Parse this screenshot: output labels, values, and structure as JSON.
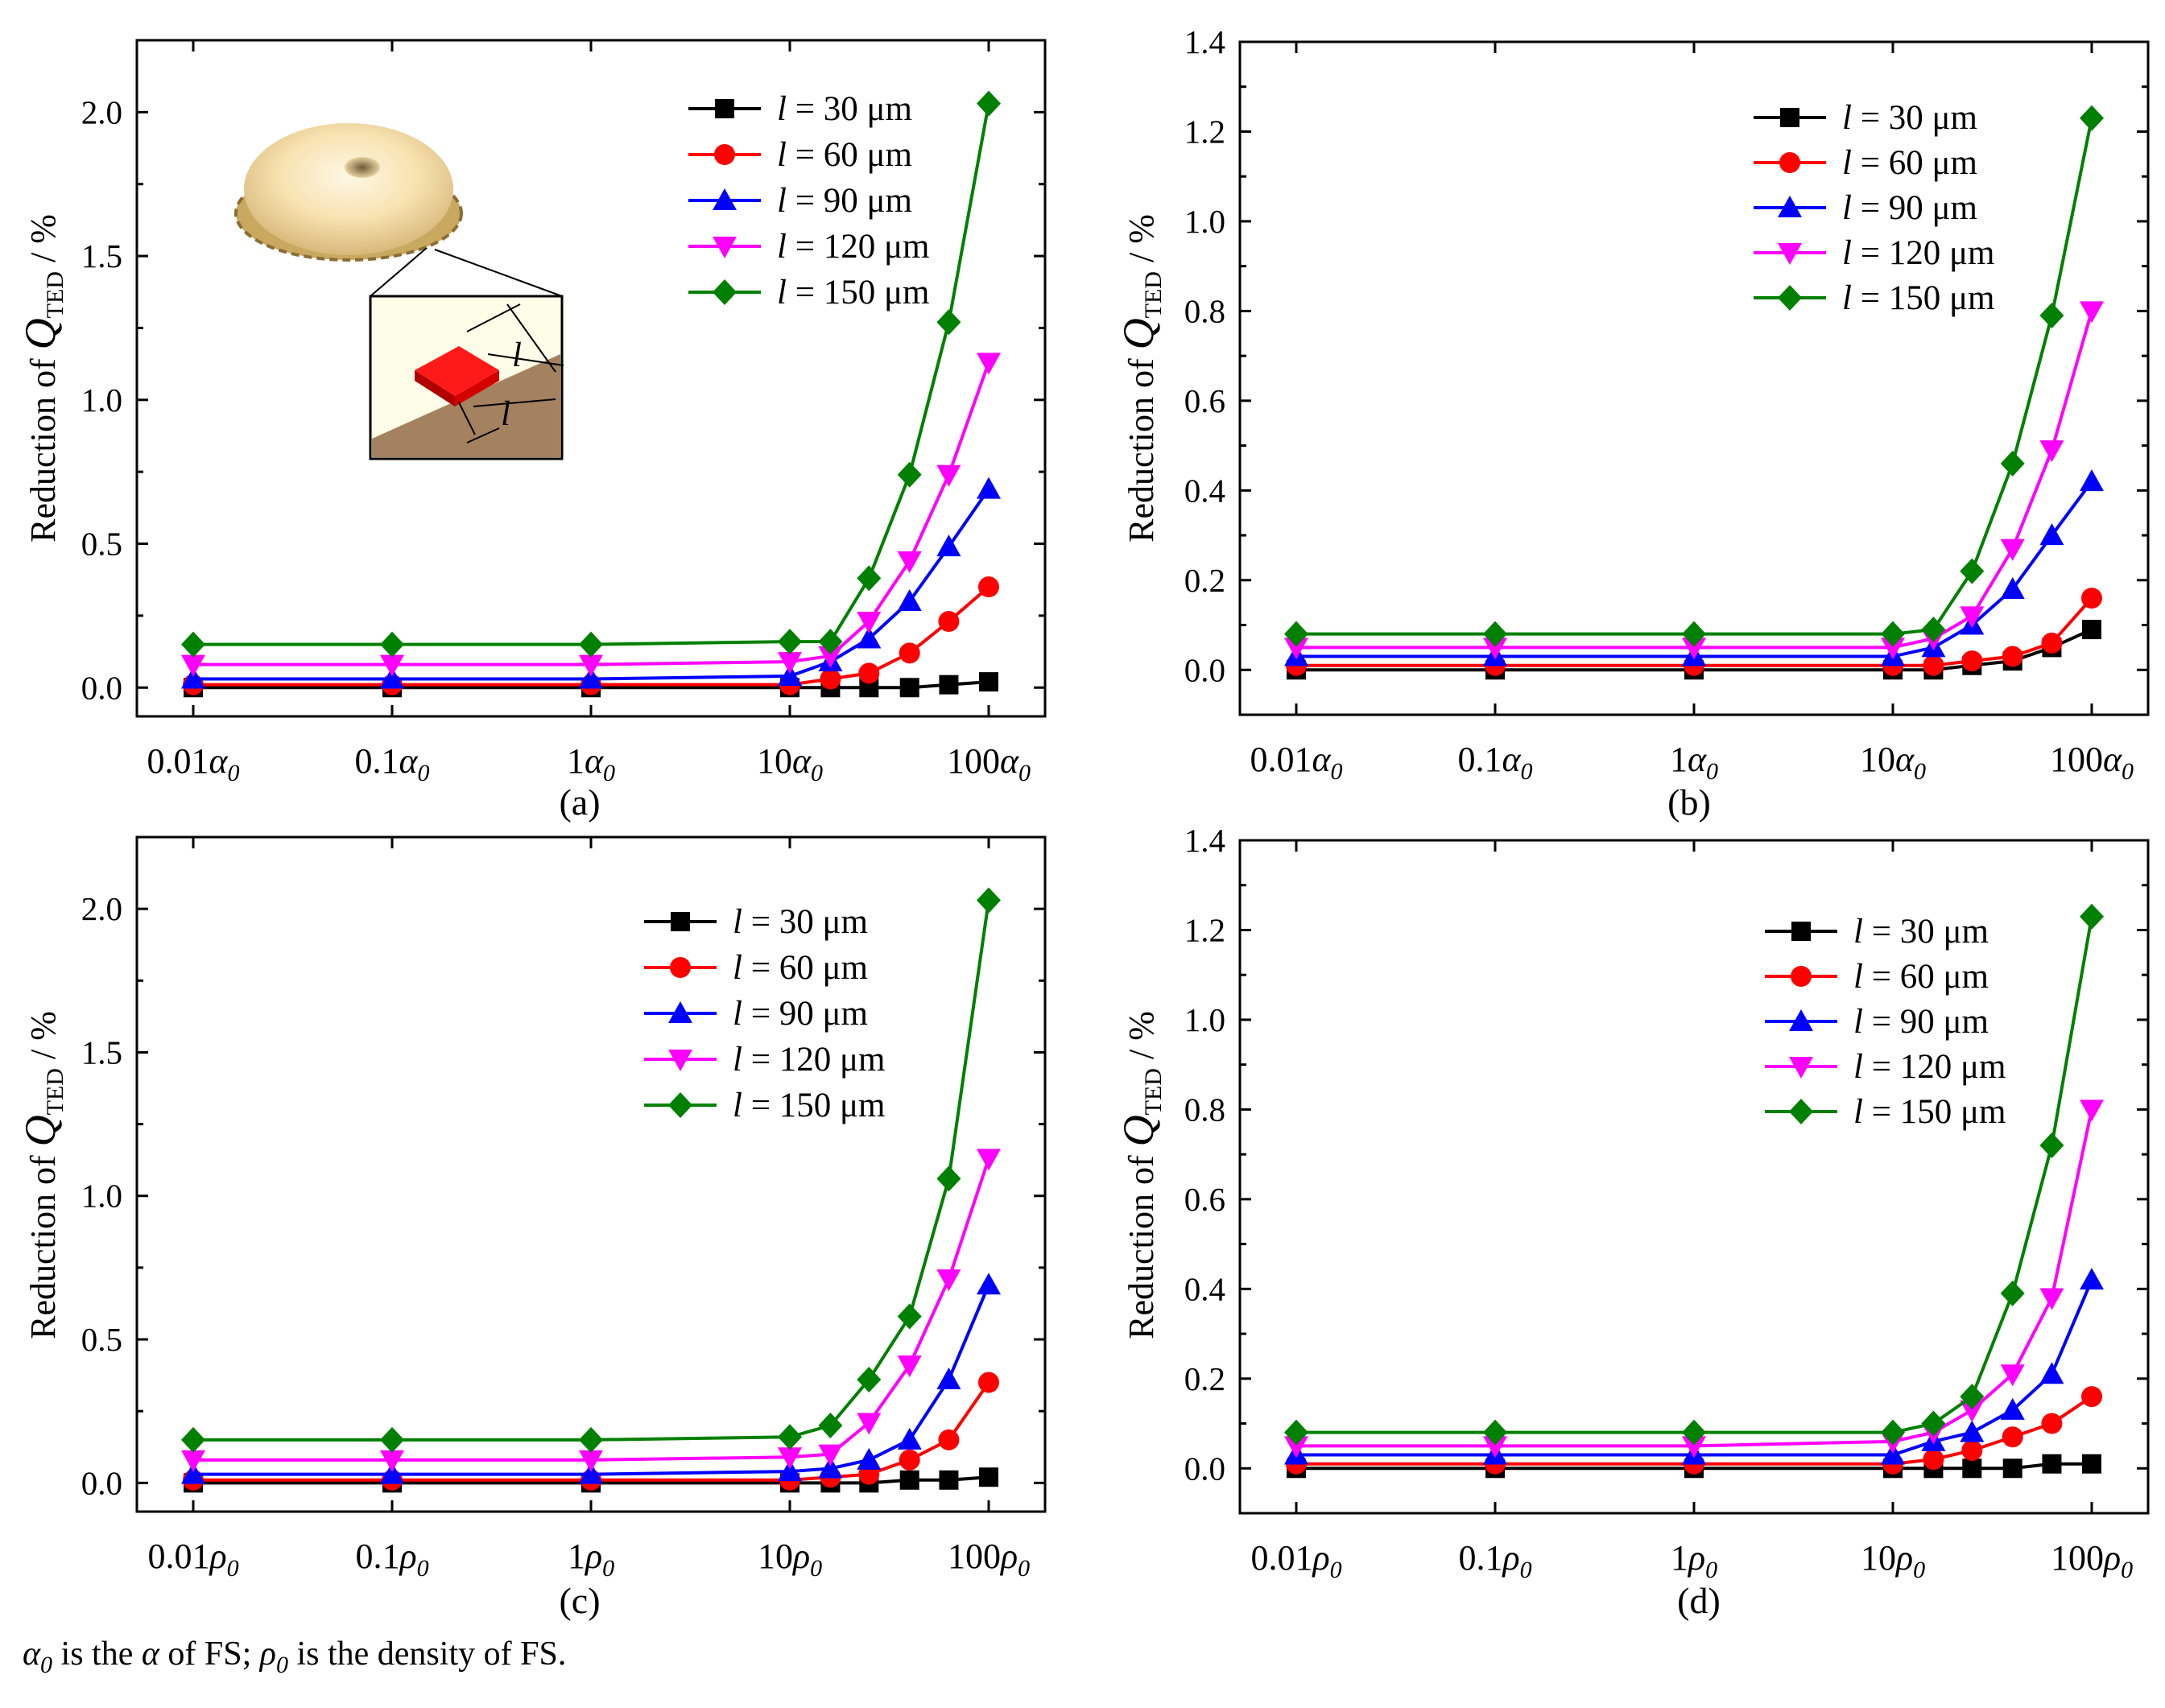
{
  "figure_title": "",
  "footnote": {
    "alpha_sym": "α",
    "alpha_sub": "0",
    "text1": " is the ",
    "alpha2": "α",
    "text2": " of FS; ",
    "rho_sym": "ρ",
    "rho_sub": "0",
    "text3": " is the density of FS."
  },
  "colors": {
    "l30": "#000000",
    "l60": "#ff0000",
    "l90": "#0000ff",
    "l120": "#ff00ff",
    "l150": "#008000"
  },
  "inset": {
    "description_icon": "hemispherical-resonator-icon",
    "dimension_label": "l"
  },
  "chart_data": [
    {
      "id": "a",
      "type": "line",
      "panel_label": "(a)",
      "xscale": "log",
      "x": [
        0.01,
        0.1,
        1,
        10,
        16,
        25,
        40,
        63,
        100
      ],
      "xticks": [
        {
          "value": 0.01,
          "coef": "0.01",
          "sym": "α",
          "sub": "0"
        },
        {
          "value": 0.1,
          "coef": "0.1",
          "sym": "α",
          "sub": "0"
        },
        {
          "value": 1,
          "coef": "1",
          "sym": "α",
          "sub": "0"
        },
        {
          "value": 10,
          "coef": "10",
          "sym": "α",
          "sub": "0"
        },
        {
          "value": 100,
          "coef": "100",
          "sym": "α",
          "sub": "0"
        }
      ],
      "ylim": [
        -0.1,
        2.25
      ],
      "yticks": [
        "0.0",
        "0.5",
        "1.0",
        "1.5",
        "2.0"
      ],
      "ylabel": {
        "prefix": "Reduction of ",
        "sym": "Q",
        "sub": "TED",
        "suffix": " / %"
      },
      "series": [
        {
          "name": "l = 30 μm",
          "l": "l",
          "rest": " = 30 μm",
          "marker": "square",
          "color_key": "l30",
          "values": [
            0.0,
            0.0,
            0.0,
            0.0,
            0.0,
            0.0,
            0.0,
            0.01,
            0.02
          ]
        },
        {
          "name": "l = 60 μm",
          "l": "l",
          "rest": " = 60 μm",
          "marker": "circle",
          "color_key": "l60",
          "values": [
            0.01,
            0.01,
            0.01,
            0.01,
            0.03,
            0.05,
            0.12,
            0.23,
            0.35
          ]
        },
        {
          "name": "l = 90 μm",
          "l": "l",
          "rest": " = 90 μm",
          "marker": "triangle-up",
          "color_key": "l90",
          "values": [
            0.03,
            0.03,
            0.03,
            0.04,
            0.09,
            0.17,
            0.3,
            0.49,
            0.69
          ]
        },
        {
          "name": "l = 120 μm",
          "l": "l",
          "rest": " = 120 μm",
          "marker": "triangle-down",
          "color_key": "l120",
          "values": [
            0.08,
            0.08,
            0.08,
            0.09,
            0.11,
            0.23,
            0.44,
            0.74,
            1.13
          ]
        },
        {
          "name": "l = 150 μm",
          "l": "l",
          "rest": " = 150 μm",
          "marker": "diamond",
          "color_key": "l150",
          "values": [
            0.15,
            0.15,
            0.15,
            0.16,
            0.16,
            0.38,
            0.74,
            1.27,
            2.03
          ]
        }
      ]
    },
    {
      "id": "b",
      "type": "line",
      "panel_label": "(b)",
      "xscale": "log",
      "x": [
        0.01,
        0.1,
        1,
        10,
        16,
        25,
        40,
        63,
        100
      ],
      "xticks": [
        {
          "value": 0.01,
          "coef": "0.01",
          "sym": "α",
          "sub": "0"
        },
        {
          "value": 0.1,
          "coef": "0.1",
          "sym": "α",
          "sub": "0"
        },
        {
          "value": 1,
          "coef": "1",
          "sym": "α",
          "sub": "0"
        },
        {
          "value": 10,
          "coef": "10",
          "sym": "α",
          "sub": "0"
        },
        {
          "value": 100,
          "coef": "100",
          "sym": "α",
          "sub": "0"
        }
      ],
      "ylim": [
        -0.1,
        1.4
      ],
      "yticks": [
        "0.0",
        "0.2",
        "0.4",
        "0.6",
        "0.8",
        "1.0",
        "1.2",
        "1.4"
      ],
      "ylabel": {
        "prefix": "Reduction of ",
        "sym": "Q",
        "sub": "TED",
        "suffix": " / %"
      },
      "series": [
        {
          "name": "l = 30 μm",
          "l": "l",
          "rest": " = 30 μm",
          "marker": "square",
          "color_key": "l30",
          "values": [
            0.0,
            0.0,
            0.0,
            0.0,
            0.0,
            0.01,
            0.02,
            0.05,
            0.09
          ]
        },
        {
          "name": "l = 60 μm",
          "l": "l",
          "rest": " = 60 μm",
          "marker": "circle",
          "color_key": "l60",
          "values": [
            0.01,
            0.01,
            0.01,
            0.01,
            0.01,
            0.02,
            0.03,
            0.06,
            0.16
          ]
        },
        {
          "name": "l = 90 μm",
          "l": "l",
          "rest": " = 90 μm",
          "marker": "triangle-up",
          "color_key": "l90",
          "values": [
            0.03,
            0.03,
            0.03,
            0.03,
            0.05,
            0.1,
            0.18,
            0.3,
            0.42
          ]
        },
        {
          "name": "l = 120 μm",
          "l": "l",
          "rest": " = 120 μm",
          "marker": "triangle-down",
          "color_key": "l120",
          "values": [
            0.05,
            0.05,
            0.05,
            0.05,
            0.07,
            0.12,
            0.27,
            0.49,
            0.8
          ]
        },
        {
          "name": "l = 150 μm",
          "l": "l",
          "rest": " = 150 μm",
          "marker": "diamond",
          "color_key": "l150",
          "values": [
            0.08,
            0.08,
            0.08,
            0.08,
            0.09,
            0.22,
            0.46,
            0.79,
            1.23
          ]
        }
      ]
    },
    {
      "id": "c",
      "type": "line",
      "panel_label": "(c)",
      "xscale": "log",
      "x": [
        0.01,
        0.1,
        1,
        10,
        16,
        25,
        40,
        63,
        100
      ],
      "xticks": [
        {
          "value": 0.01,
          "coef": "0.01",
          "sym": "ρ",
          "sub": "0"
        },
        {
          "value": 0.1,
          "coef": "0.1",
          "sym": "ρ",
          "sub": "0"
        },
        {
          "value": 1,
          "coef": "1",
          "sym": "ρ",
          "sub": "0"
        },
        {
          "value": 10,
          "coef": "10",
          "sym": "ρ",
          "sub": "0"
        },
        {
          "value": 100,
          "coef": "100",
          "sym": "ρ",
          "sub": "0"
        }
      ],
      "ylim": [
        -0.1,
        2.25
      ],
      "yticks": [
        "0.0",
        "0.5",
        "1.0",
        "1.5",
        "2.0"
      ],
      "ylabel": {
        "prefix": "Reduction of ",
        "sym": "Q",
        "sub": "TED",
        "suffix": " / %"
      },
      "series": [
        {
          "name": "l = 30 μm",
          "l": "l",
          "rest": " = 30 μm",
          "marker": "square",
          "color_key": "l30",
          "values": [
            0.0,
            0.0,
            0.0,
            0.0,
            0.0,
            0.0,
            0.01,
            0.01,
            0.02
          ]
        },
        {
          "name": "l = 60 μm",
          "l": "l",
          "rest": " = 60 μm",
          "marker": "circle",
          "color_key": "l60",
          "values": [
            0.01,
            0.01,
            0.01,
            0.01,
            0.02,
            0.03,
            0.08,
            0.15,
            0.35
          ]
        },
        {
          "name": "l = 90 μm",
          "l": "l",
          "rest": " = 90 μm",
          "marker": "triangle-up",
          "color_key": "l90",
          "values": [
            0.03,
            0.03,
            0.03,
            0.04,
            0.05,
            0.08,
            0.15,
            0.36,
            0.69
          ]
        },
        {
          "name": "l = 120 μm",
          "l": "l",
          "rest": " = 120 μm",
          "marker": "triangle-down",
          "color_key": "l120",
          "values": [
            0.08,
            0.08,
            0.08,
            0.09,
            0.1,
            0.21,
            0.41,
            0.71,
            1.13
          ]
        },
        {
          "name": "l = 150 μm",
          "l": "l",
          "rest": " = 150 μm",
          "marker": "diamond",
          "color_key": "l150",
          "values": [
            0.15,
            0.15,
            0.15,
            0.16,
            0.2,
            0.36,
            0.58,
            1.06,
            2.03
          ]
        }
      ]
    },
    {
      "id": "d",
      "type": "line",
      "panel_label": "(d)",
      "xscale": "log",
      "x": [
        0.01,
        0.1,
        1,
        10,
        16,
        25,
        40,
        63,
        100
      ],
      "xticks": [
        {
          "value": 0.01,
          "coef": "0.01",
          "sym": "ρ",
          "sub": "0"
        },
        {
          "value": 0.1,
          "coef": "0.1",
          "sym": "ρ",
          "sub": "0"
        },
        {
          "value": 1,
          "coef": "1",
          "sym": "ρ",
          "sub": "0"
        },
        {
          "value": 10,
          "coef": "10",
          "sym": "ρ",
          "sub": "0"
        },
        {
          "value": 100,
          "coef": "100",
          "sym": "ρ",
          "sub": "0"
        }
      ],
      "ylim": [
        -0.1,
        1.4
      ],
      "yticks": [
        "0.0",
        "0.2",
        "0.4",
        "0.6",
        "0.8",
        "1.0",
        "1.2",
        "1.4"
      ],
      "ylabel": {
        "prefix": "Reduction of ",
        "sym": "Q",
        "sub": "TED",
        "suffix": " / %"
      },
      "series": [
        {
          "name": "l = 30 μm",
          "l": "l",
          "rest": " = 30 μm",
          "marker": "square",
          "color_key": "l30",
          "values": [
            0.0,
            0.0,
            0.0,
            0.0,
            0.0,
            0.0,
            0.0,
            0.01,
            0.01
          ]
        },
        {
          "name": "l = 60 μm",
          "l": "l",
          "rest": " = 60 μm",
          "marker": "circle",
          "color_key": "l60",
          "values": [
            0.01,
            0.01,
            0.01,
            0.01,
            0.02,
            0.04,
            0.07,
            0.1,
            0.16
          ]
        },
        {
          "name": "l = 90 μm",
          "l": "l",
          "rest": " = 90 μm",
          "marker": "triangle-up",
          "color_key": "l90",
          "values": [
            0.03,
            0.03,
            0.03,
            0.03,
            0.06,
            0.08,
            0.13,
            0.21,
            0.42
          ]
        },
        {
          "name": "l = 120 μm",
          "l": "l",
          "rest": " = 120 μm",
          "marker": "triangle-down",
          "color_key": "l120",
          "values": [
            0.05,
            0.05,
            0.05,
            0.06,
            0.08,
            0.13,
            0.21,
            0.38,
            0.8
          ]
        },
        {
          "name": "l = 150 μm",
          "l": "l",
          "rest": " = 150 μm",
          "marker": "diamond",
          "color_key": "l150",
          "values": [
            0.08,
            0.08,
            0.08,
            0.08,
            0.1,
            0.16,
            0.39,
            0.72,
            1.23
          ]
        }
      ]
    }
  ]
}
